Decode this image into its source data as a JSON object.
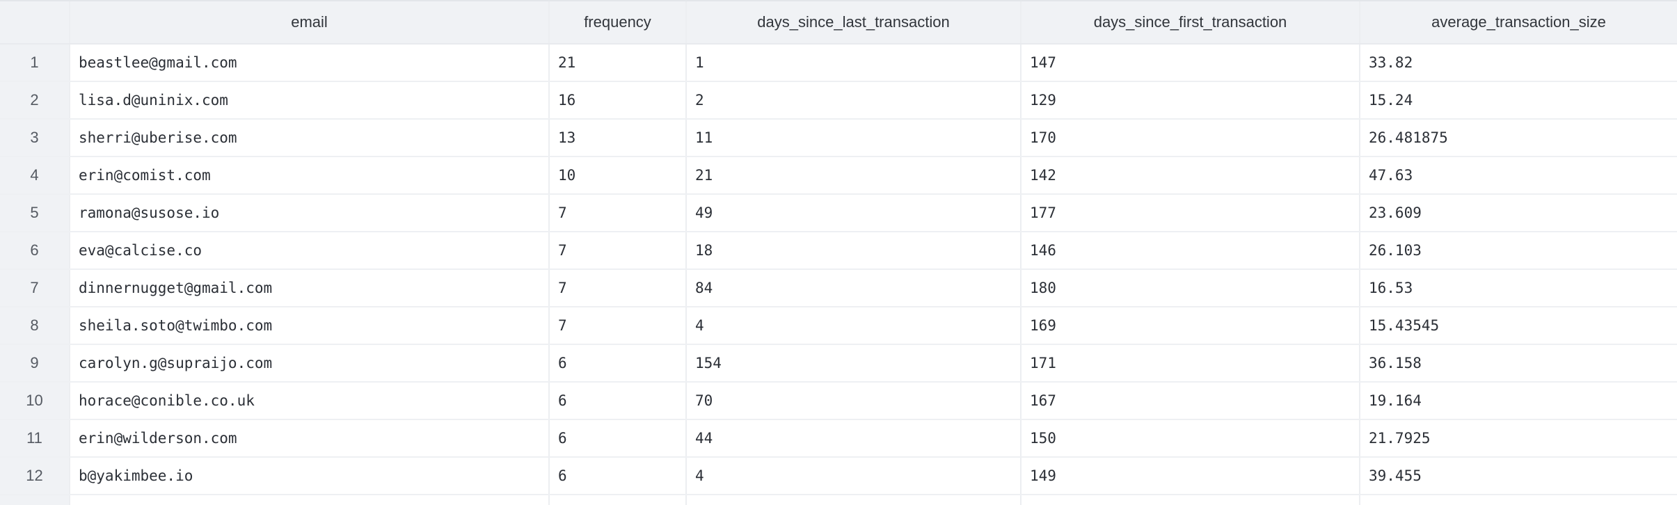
{
  "table": {
    "columns": [
      "",
      "email",
      "frequency",
      "days_since_last_transaction",
      "days_since_first_transaction",
      "average_transaction_size"
    ],
    "rows": [
      {
        "index": "1",
        "email": "beastlee@gmail.com",
        "frequency": "21",
        "days_since_last_transaction": "1",
        "days_since_first_transaction": "147",
        "average_transaction_size": "33.82"
      },
      {
        "index": "2",
        "email": "lisa.d@uninix.com",
        "frequency": "16",
        "days_since_last_transaction": "2",
        "days_since_first_transaction": "129",
        "average_transaction_size": "15.24"
      },
      {
        "index": "3",
        "email": "sherri@uberise.com",
        "frequency": "13",
        "days_since_last_transaction": "11",
        "days_since_first_transaction": "170",
        "average_transaction_size": "26.481875"
      },
      {
        "index": "4",
        "email": "erin@comist.com",
        "frequency": "10",
        "days_since_last_transaction": "21",
        "days_since_first_transaction": "142",
        "average_transaction_size": "47.63"
      },
      {
        "index": "5",
        "email": "ramona@susose.io",
        "frequency": "7",
        "days_since_last_transaction": "49",
        "days_since_first_transaction": "177",
        "average_transaction_size": "23.609"
      },
      {
        "index": "6",
        "email": "eva@calcise.co",
        "frequency": "7",
        "days_since_last_transaction": "18",
        "days_since_first_transaction": "146",
        "average_transaction_size": "26.103"
      },
      {
        "index": "7",
        "email": "dinnernugget@gmail.com",
        "frequency": "7",
        "days_since_last_transaction": "84",
        "days_since_first_transaction": "180",
        "average_transaction_size": "16.53"
      },
      {
        "index": "8",
        "email": "sheila.soto@twimbo.com",
        "frequency": "7",
        "days_since_last_transaction": "4",
        "days_since_first_transaction": "169",
        "average_transaction_size": "15.43545"
      },
      {
        "index": "9",
        "email": "carolyn.g@supraijo.com",
        "frequency": "6",
        "days_since_last_transaction": "154",
        "days_since_first_transaction": "171",
        "average_transaction_size": "36.158"
      },
      {
        "index": "10",
        "email": "horace@conible.co.uk",
        "frequency": "6",
        "days_since_last_transaction": "70",
        "days_since_first_transaction": "167",
        "average_transaction_size": "19.164"
      },
      {
        "index": "11",
        "email": "erin@wilderson.com",
        "frequency": "6",
        "days_since_last_transaction": "44",
        "days_since_first_transaction": "150",
        "average_transaction_size": "21.7925"
      },
      {
        "index": "12",
        "email": "b@yakimbee.io",
        "frequency": "6",
        "days_since_last_transaction": "4",
        "days_since_first_transaction": "149",
        "average_transaction_size": "39.455"
      }
    ]
  }
}
